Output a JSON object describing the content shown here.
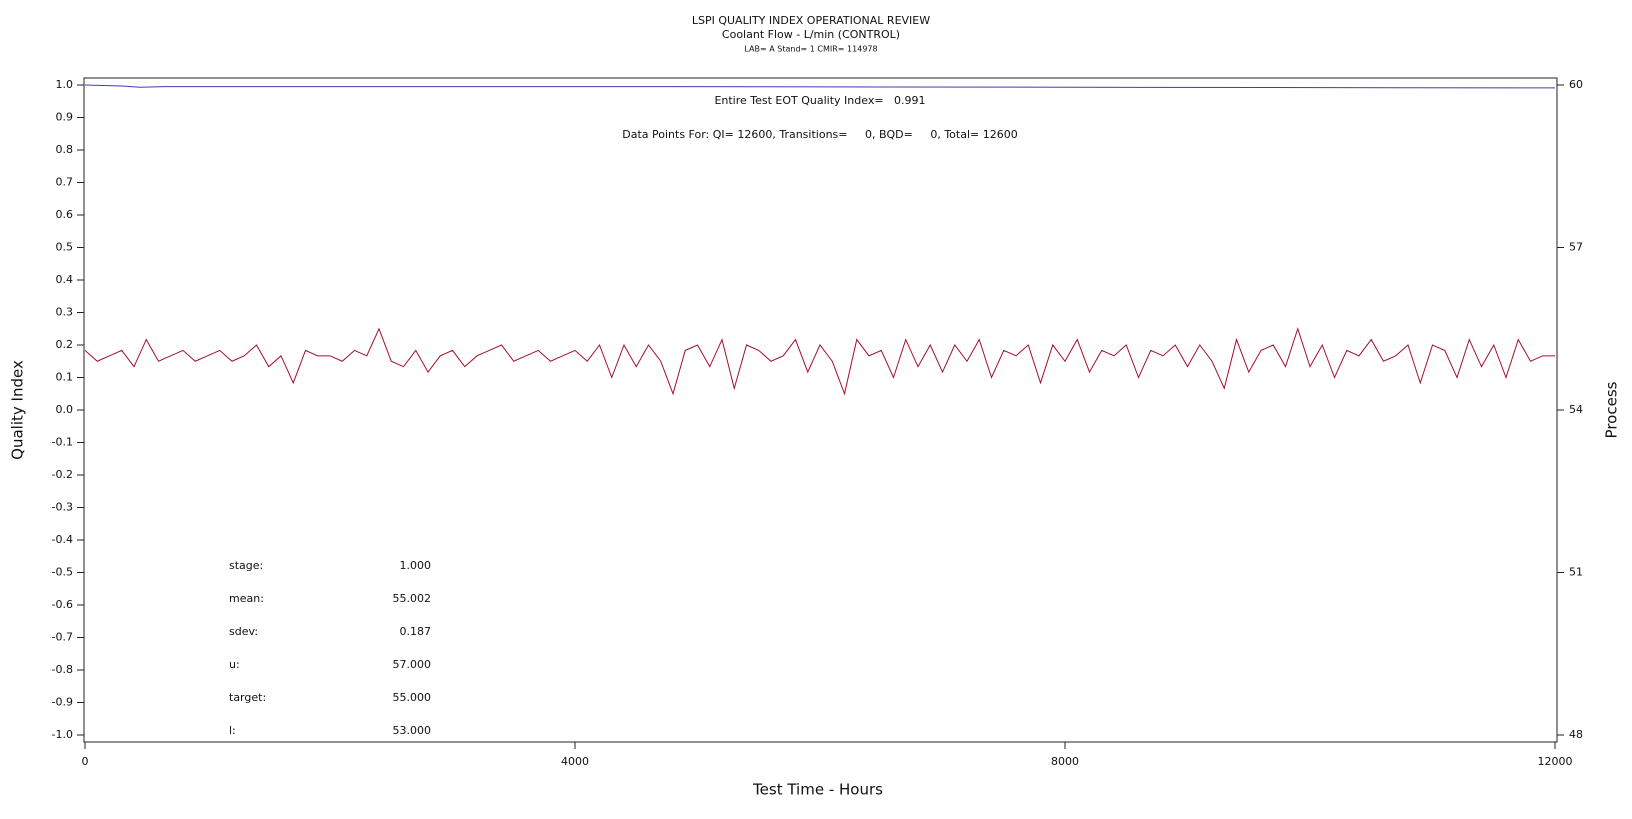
{
  "chart_data": {
    "type": "line",
    "title": "LSPI QUALITY INDEX OPERATIONAL REVIEW",
    "subtitle": "Coolant Flow - L/min (CONTROL)",
    "subtitle2": "LAB= A Stand= 1 CMIR= 114978",
    "xlabel": "Test Time - Hours",
    "ylabel": "Quality Index",
    "y2label": "Process",
    "xlim": [
      0,
      12000
    ],
    "ylim": [
      -1,
      1
    ],
    "y2lim": [
      48,
      60
    ],
    "xticks": [
      0,
      4000,
      8000,
      12000
    ],
    "yticks": [
      {
        "value": 1,
        "label": "1.0"
      },
      0.9,
      0.8,
      0.7,
      0.6,
      0.5,
      0.4,
      0.3,
      0.2,
      0.1,
      {
        "value": 0,
        "label": "0.0"
      },
      -0.1,
      -0.2,
      -0.3,
      -0.4,
      -0.5,
      -0.6,
      -0.7,
      -0.8,
      -0.9,
      {
        "value": -1,
        "label": "-1.0"
      }
    ],
    "y2ticks": [
      48,
      51,
      54,
      57,
      60
    ],
    "series": [
      {
        "color": "#3c3cb4",
        "axis": "y",
        "x": [
          0,
          300,
          450,
          650,
          4800,
          12000
        ],
        "values": [
          1.0,
          0.997,
          0.993,
          0.995,
          0.995,
          0.991
        ]
      },
      {
        "color": "#a0102a",
        "axis": "y2",
        "x": [
          0,
          100,
          200,
          300,
          400,
          500,
          600,
          700,
          800,
          900,
          1000,
          1100,
          1200,
          1300,
          1400,
          1500,
          1600,
          1700,
          1800,
          1900,
          2000,
          2100,
          2200,
          2300,
          2400,
          2500,
          2600,
          2700,
          2800,
          2900,
          3000,
          3100,
          3200,
          3300,
          3400,
          3500,
          3600,
          3700,
          3800,
          3900,
          4000,
          4100,
          4200,
          4300,
          4400,
          4500,
          4600,
          4700,
          4800,
          4900,
          5000,
          5100,
          5200,
          5300,
          5400,
          5500,
          5600,
          5700,
          5800,
          5900,
          6000,
          6100,
          6200,
          6300,
          6400,
          6500,
          6600,
          6700,
          6800,
          6900,
          7000,
          7100,
          7200,
          7300,
          7400,
          7500,
          7600,
          7700,
          7800,
          7900,
          8000,
          8100,
          8200,
          8300,
          8400,
          8500,
          8600,
          8700,
          8800,
          8900,
          9000,
          9100,
          9200,
          9300,
          9400,
          9500,
          9600,
          9700,
          9800,
          9900,
          10000,
          10100,
          10200,
          10300,
          10400,
          10500,
          10600,
          10700,
          10800,
          10900,
          11000,
          11100,
          11200,
          11300,
          11400,
          11500,
          11600,
          11700,
          11800,
          11900,
          12000
        ],
        "values": [
          55.1,
          54.9,
          55.0,
          55.1,
          54.8,
          55.3,
          54.9,
          55.0,
          55.1,
          54.9,
          55.0,
          55.1,
          54.9,
          55.0,
          55.2,
          54.8,
          55.0,
          54.5,
          55.1,
          55.0,
          55.0,
          54.9,
          55.1,
          55.0,
          55.5,
          54.9,
          54.8,
          55.1,
          54.7,
          55.0,
          55.1,
          54.8,
          55.0,
          55.1,
          55.2,
          54.9,
          55.0,
          55.1,
          54.9,
          55.0,
          55.1,
          54.9,
          55.2,
          54.6,
          55.2,
          54.8,
          55.2,
          54.9,
          54.3,
          55.1,
          55.2,
          54.8,
          55.3,
          54.4,
          55.2,
          55.1,
          54.9,
          55.0,
          55.3,
          54.7,
          55.2,
          54.9,
          54.3,
          55.3,
          55.0,
          55.1,
          54.6,
          55.3,
          54.8,
          55.2,
          54.7,
          55.2,
          54.9,
          55.3,
          54.6,
          55.1,
          55.0,
          55.2,
          54.5,
          55.2,
          54.9,
          55.3,
          54.7,
          55.1,
          55.0,
          55.2,
          54.6,
          55.1,
          55.0,
          55.2,
          54.8,
          55.2,
          54.9,
          54.4,
          55.3,
          54.7,
          55.1,
          55.2,
          54.8,
          55.5,
          54.8,
          55.2,
          54.6,
          55.1,
          55.0,
          55.3,
          54.9,
          55.0,
          55.2,
          54.5,
          55.2,
          55.1,
          54.6,
          55.3,
          54.8,
          55.2,
          54.6,
          55.3,
          54.9,
          55.0,
          55.0
        ]
      }
    ],
    "annotations": [
      "Entire Test EOT Quality Index=   0.991",
      "Data Points For: QI= 12600, Transitions=     0, BQD=     0, Total= 12600"
    ],
    "stats": [
      {
        "label": "stage:",
        "value": "1.000"
      },
      {
        "label": "mean:",
        "value": "55.002"
      },
      {
        "label": "sdev:",
        "value": "0.187"
      },
      {
        "label": "u:",
        "value": "57.000"
      },
      {
        "label": "target:",
        "value": "55.000"
      },
      {
        "label": "l:",
        "value": "53.000"
      }
    ]
  }
}
